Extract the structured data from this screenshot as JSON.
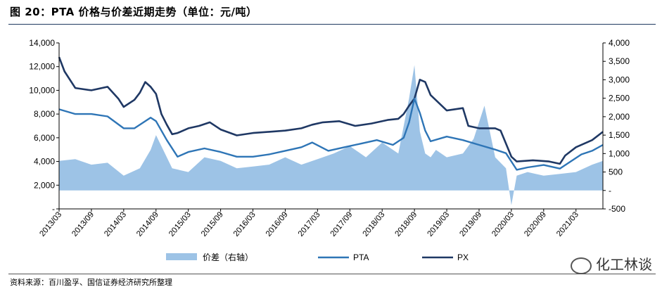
{
  "figure": {
    "title": "图 20：PTA 价格与价差近期走势（单位：元/吨）",
    "source": "资料来源：百川盈孚、国信证券经济研究所整理",
    "watermark": "化工林谈",
    "watermark_icon": "wechat-icon"
  },
  "chart_data": {
    "type": "line",
    "x_tick_labels": [
      "2013/03",
      "2013/09",
      "2014/03",
      "2014/09",
      "2015/03",
      "2015/09",
      "2016/03",
      "2016/09",
      "2017/03",
      "2017/09",
      "2018/03",
      "2018/09",
      "2019/03",
      "2019/09",
      "2020/03",
      "2020/09",
      "2021/03"
    ],
    "x_range": [
      "2013/03",
      "2021/08"
    ],
    "left_axis": {
      "ticks": [
        "14,000",
        "12,000",
        "10,000",
        "8,000",
        "6,000",
        "4,000",
        "2,000",
        "-"
      ],
      "ylim": [
        0,
        14000
      ]
    },
    "right_axis": {
      "ticks": [
        "4,000",
        "3,500",
        "3,000",
        "2,500",
        "2,000",
        "1,500",
        "1,000",
        "500",
        "-",
        "-500"
      ],
      "ylim": [
        -500,
        4000
      ]
    },
    "legend": {
      "placement": "bottom",
      "entries": [
        "价差（右轴）",
        "PTA",
        "PX"
      ]
    },
    "colors": {
      "spread": "#9dc3e6",
      "pta": "#2e75b6",
      "px": "#1f3864"
    },
    "series": [
      {
        "name": "PX",
        "axis": "left",
        "x": [
          "2013/03",
          "2013/04",
          "2013/06",
          "2013/09",
          "2013/12",
          "2014/02",
          "2014/03",
          "2014/05",
          "2014/06",
          "2014/07",
          "2014/08",
          "2014/09",
          "2014/10",
          "2014/11",
          "2014/12",
          "2015/01",
          "2015/03",
          "2015/05",
          "2015/07",
          "2015/09",
          "2015/12",
          "2016/03",
          "2016/06",
          "2016/09",
          "2016/12",
          "2017/02",
          "2017/04",
          "2017/07",
          "2017/10",
          "2018/01",
          "2018/04",
          "2018/06",
          "2018/07",
          "2018/08",
          "2018/09",
          "2018/10",
          "2018/11",
          "2018/12",
          "2019/03",
          "2019/06",
          "2019/07",
          "2019/09",
          "2019/12",
          "2020/01",
          "2020/03",
          "2020/04",
          "2020/07",
          "2020/10",
          "2020/12",
          "2021/01",
          "2021/03",
          "2021/06",
          "2021/08"
        ],
        "values": [
          12800,
          11600,
          10200,
          10000,
          10300,
          9300,
          8600,
          9200,
          9800,
          10700,
          10300,
          9700,
          8000,
          7100,
          6300,
          6400,
          6800,
          7000,
          7300,
          6700,
          6200,
          6400,
          6500,
          6600,
          6800,
          7100,
          7300,
          7400,
          7000,
          7200,
          7500,
          7600,
          8000,
          8700,
          9300,
          10900,
          10700,
          9600,
          8300,
          8500,
          7000,
          6800,
          6800,
          6600,
          4400,
          4000,
          4100,
          4000,
          3800,
          4500,
          5200,
          5800,
          6500
        ]
      },
      {
        "name": "PTA",
        "axis": "left",
        "x": [
          "2013/03",
          "2013/06",
          "2013/09",
          "2013/12",
          "2014/03",
          "2014/05",
          "2014/07",
          "2014/08",
          "2014/09",
          "2014/11",
          "2015/01",
          "2015/03",
          "2015/06",
          "2015/09",
          "2015/12",
          "2016/03",
          "2016/06",
          "2016/09",
          "2016/12",
          "2017/02",
          "2017/05",
          "2017/08",
          "2017/11",
          "2018/02",
          "2018/05",
          "2018/07",
          "2018/08",
          "2018/09",
          "2018/10",
          "2018/11",
          "2018/12",
          "2019/03",
          "2019/06",
          "2019/09",
          "2019/12",
          "2020/02",
          "2020/04",
          "2020/06",
          "2020/09",
          "2020/12",
          "2021/02",
          "2021/04",
          "2021/06",
          "2021/08"
        ],
        "values": [
          8400,
          8000,
          8000,
          7800,
          6800,
          6800,
          7400,
          7700,
          7400,
          5800,
          4400,
          4800,
          5100,
          4800,
          4400,
          4400,
          4600,
          4900,
          5200,
          5600,
          4900,
          5200,
          5500,
          5800,
          5400,
          6000,
          7300,
          9300,
          8100,
          6600,
          5700,
          6100,
          5800,
          5400,
          5000,
          4700,
          3300,
          3500,
          3700,
          3400,
          4000,
          4600,
          4900,
          5400
        ]
      },
      {
        "name": "价差（右轴）",
        "axis": "right",
        "x": [
          "2013/03",
          "2013/06",
          "2013/09",
          "2013/12",
          "2014/03",
          "2014/06",
          "2014/08",
          "2014/09",
          "2014/10",
          "2014/12",
          "2015/03",
          "2015/06",
          "2015/09",
          "2015/12",
          "2016/03",
          "2016/06",
          "2016/09",
          "2016/12",
          "2017/03",
          "2017/06",
          "2017/09",
          "2017/12",
          "2018/03",
          "2018/06",
          "2018/08",
          "2018/09",
          "2018/10",
          "2018/11",
          "2018/12",
          "2019/01",
          "2019/03",
          "2019/06",
          "2019/08",
          "2019/10",
          "2019/12",
          "2020/02",
          "2020/03",
          "2020/04",
          "2020/06",
          "2020/09",
          "2020/12",
          "2021/03",
          "2021/06",
          "2021/08"
        ],
        "values": [
          800,
          850,
          700,
          750,
          400,
          600,
          1100,
          1500,
          1200,
          600,
          500,
          900,
          800,
          600,
          650,
          700,
          900,
          700,
          850,
          1000,
          1200,
          900,
          1300,
          1000,
          2500,
          3400,
          1600,
          1000,
          900,
          1100,
          900,
          1000,
          1400,
          2300,
          900,
          600,
          -400,
          400,
          500,
          400,
          450,
          500,
          700,
          800
        ]
      }
    ]
  }
}
